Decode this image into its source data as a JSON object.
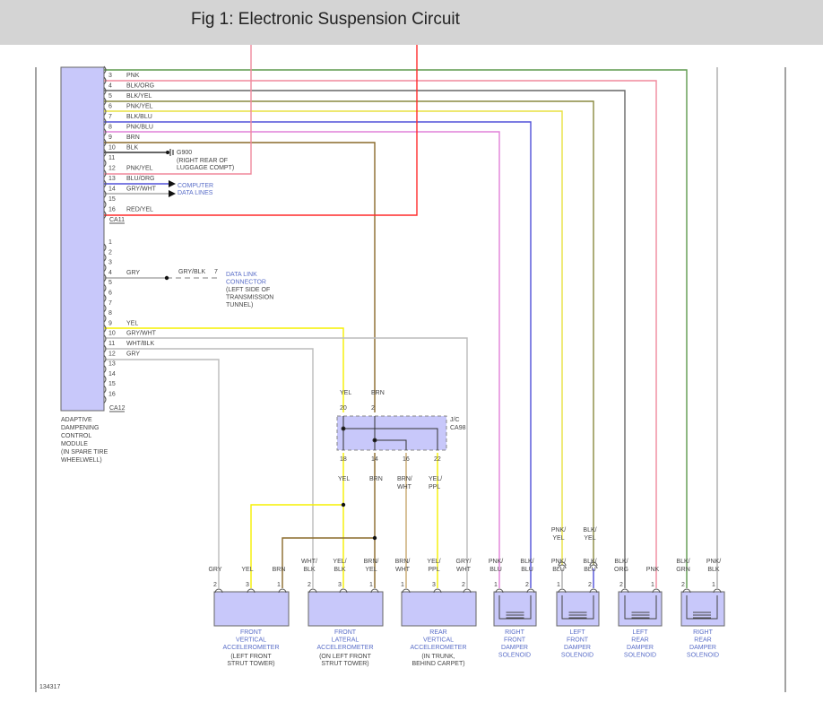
{
  "title": "Fig 1: Electronic Suspension Circuit",
  "figure_id": "134317",
  "module": {
    "name_lines": [
      "ADAPTIVE",
      "DAMPENING",
      "CONTROL",
      "MODULE",
      "(IN SPARE TIRE",
      "WHEELWELL)"
    ],
    "connector_a": "CA11",
    "connector_b": "CA12",
    "ca11_pins": [
      {
        "pin": "3",
        "color": "PNK"
      },
      {
        "pin": "4",
        "color": "BLK/ORG"
      },
      {
        "pin": "5",
        "color": "BLK/YEL"
      },
      {
        "pin": "6",
        "color": "PNK/YEL"
      },
      {
        "pin": "7",
        "color": "BLK/BLU"
      },
      {
        "pin": "8",
        "color": "PNK/BLU"
      },
      {
        "pin": "9",
        "color": "BRN"
      },
      {
        "pin": "10",
        "color": "BLK"
      },
      {
        "pin": "11",
        "color": ""
      },
      {
        "pin": "12",
        "color": "PNK/YEL"
      },
      {
        "pin": "13",
        "color": "BLU/ORG"
      },
      {
        "pin": "14",
        "color": "GRY/WHT"
      },
      {
        "pin": "15",
        "color": ""
      },
      {
        "pin": "16",
        "color": "RED/YEL"
      }
    ],
    "ca12_pins": [
      {
        "pin": "1",
        "color": ""
      },
      {
        "pin": "2",
        "color": ""
      },
      {
        "pin": "3",
        "color": ""
      },
      {
        "pin": "4",
        "color": "GRY"
      },
      {
        "pin": "5",
        "color": ""
      },
      {
        "pin": "6",
        "color": ""
      },
      {
        "pin": "7",
        "color": ""
      },
      {
        "pin": "8",
        "color": ""
      },
      {
        "pin": "9",
        "color": "YEL"
      },
      {
        "pin": "10",
        "color": "GRY/WHT"
      },
      {
        "pin": "11",
        "color": "WHT/BLK"
      },
      {
        "pin": "12",
        "color": "GRY"
      },
      {
        "pin": "13",
        "color": ""
      },
      {
        "pin": "14",
        "color": ""
      },
      {
        "pin": "15",
        "color": ""
      },
      {
        "pin": "16",
        "color": ""
      }
    ]
  },
  "ground": {
    "id": "G900",
    "lines": [
      "(RIGHT REAR OF",
      "LUGGAGE COMPT)"
    ]
  },
  "data_lines": [
    "COMPUTER",
    "DATA LINES"
  ],
  "dlc": {
    "wire": "GRY/BLK",
    "pin": "7",
    "lines": [
      "DATA LINK",
      "CONNECTOR",
      "(LEFT SIDE OF",
      "TRANSMISSION",
      "TUNNEL)"
    ]
  },
  "junction": {
    "name": "J/C",
    "id": "CA98",
    "top_pins": [
      {
        "pin": "20",
        "color": "YEL"
      },
      {
        "pin": "2",
        "color": "BRN"
      }
    ],
    "bottom_pins": [
      {
        "pin": "18",
        "color": "YEL"
      },
      {
        "pin": "14",
        "color": "BRN"
      },
      {
        "pin": "16",
        "color": [
          "BRN/",
          "WHT"
        ]
      },
      {
        "pin": "22",
        "color": [
          "YEL/",
          "PPL"
        ]
      }
    ]
  },
  "components": [
    {
      "name": [
        "FRONT",
        "VERTICAL",
        "ACCELEROMETER"
      ],
      "loc": [
        "(LEFT FRONT",
        "STRUT TOWER)"
      ],
      "pins": [
        {
          "pin": "2",
          "color": [
            "",
            "GRY"
          ]
        },
        {
          "pin": "3",
          "color": [
            "",
            "YEL"
          ]
        },
        {
          "pin": "1",
          "color": [
            "",
            "BRN"
          ]
        }
      ]
    },
    {
      "name": [
        "FRONT",
        "LATERAL",
        "ACCELEROMETER"
      ],
      "loc": [
        "(ON LEFT FRONT",
        "STRUT TOWER)"
      ],
      "pins": [
        {
          "pin": "2",
          "color": [
            "WHT/",
            "BLK"
          ]
        },
        {
          "pin": "3",
          "color": [
            "YEL/",
            "BLK"
          ]
        },
        {
          "pin": "1",
          "color": [
            "BRN/",
            "YEL"
          ]
        }
      ]
    },
    {
      "name": [
        "REAR",
        "VERTICAL",
        "ACCELEROMETER"
      ],
      "loc": [
        "(IN TRUNK,",
        "BEHIND CARPET)"
      ],
      "pins": [
        {
          "pin": "1",
          "color": [
            "BRN/",
            "WHT"
          ]
        },
        {
          "pin": "3",
          "color": [
            "YEL/",
            "PPL"
          ]
        },
        {
          "pin": "2",
          "color": [
            "GRY/",
            "WHT"
          ]
        }
      ]
    },
    {
      "name": [
        "RIGHT",
        "FRONT",
        "DAMPER",
        "SOLENOID"
      ],
      "pins": [
        {
          "pin": "1",
          "color": [
            "PNK/",
            "BLU"
          ]
        },
        {
          "pin": "2",
          "color": [
            "BLK/",
            "BLU"
          ]
        }
      ]
    },
    {
      "name": [
        "LEFT",
        "FRONT",
        "DAMPER",
        "SOLENOID"
      ],
      "upper": [
        [
          "PNK/",
          "YEL"
        ],
        [
          "BLK/",
          "YEL"
        ]
      ],
      "pins": [
        {
          "pin": "1",
          "color": [
            "PNK/",
            "BLU"
          ]
        },
        {
          "pin": "2",
          "color": [
            "BLK/",
            "BLU"
          ]
        }
      ]
    },
    {
      "name": [
        "LEFT",
        "REAR",
        "DAMPER",
        "SOLENOID"
      ],
      "pins": [
        {
          "pin": "2",
          "color": [
            "BLK/",
            "ORG"
          ]
        },
        {
          "pin": "1",
          "color": [
            "",
            "PNK"
          ]
        }
      ]
    },
    {
      "name": [
        "RIGHT",
        "REAR",
        "DAMPER",
        "SOLENOID"
      ],
      "pins": [
        {
          "pin": "2",
          "color": [
            "BLK/",
            "GRN"
          ]
        },
        {
          "pin": "1",
          "color": [
            "PNK/",
            "BLK"
          ]
        }
      ]
    }
  ],
  "colors": {
    "module_fill": "#c8c8fa",
    "label_blue": "#5a6ec8",
    "pnk": "#f0889c",
    "grn": "#5e9a4e",
    "yel": "#f5f000",
    "brn": "#8a6a2a",
    "blu": "#5050d8",
    "red": "#ff2a2a",
    "gry": "#bbbbbb"
  }
}
